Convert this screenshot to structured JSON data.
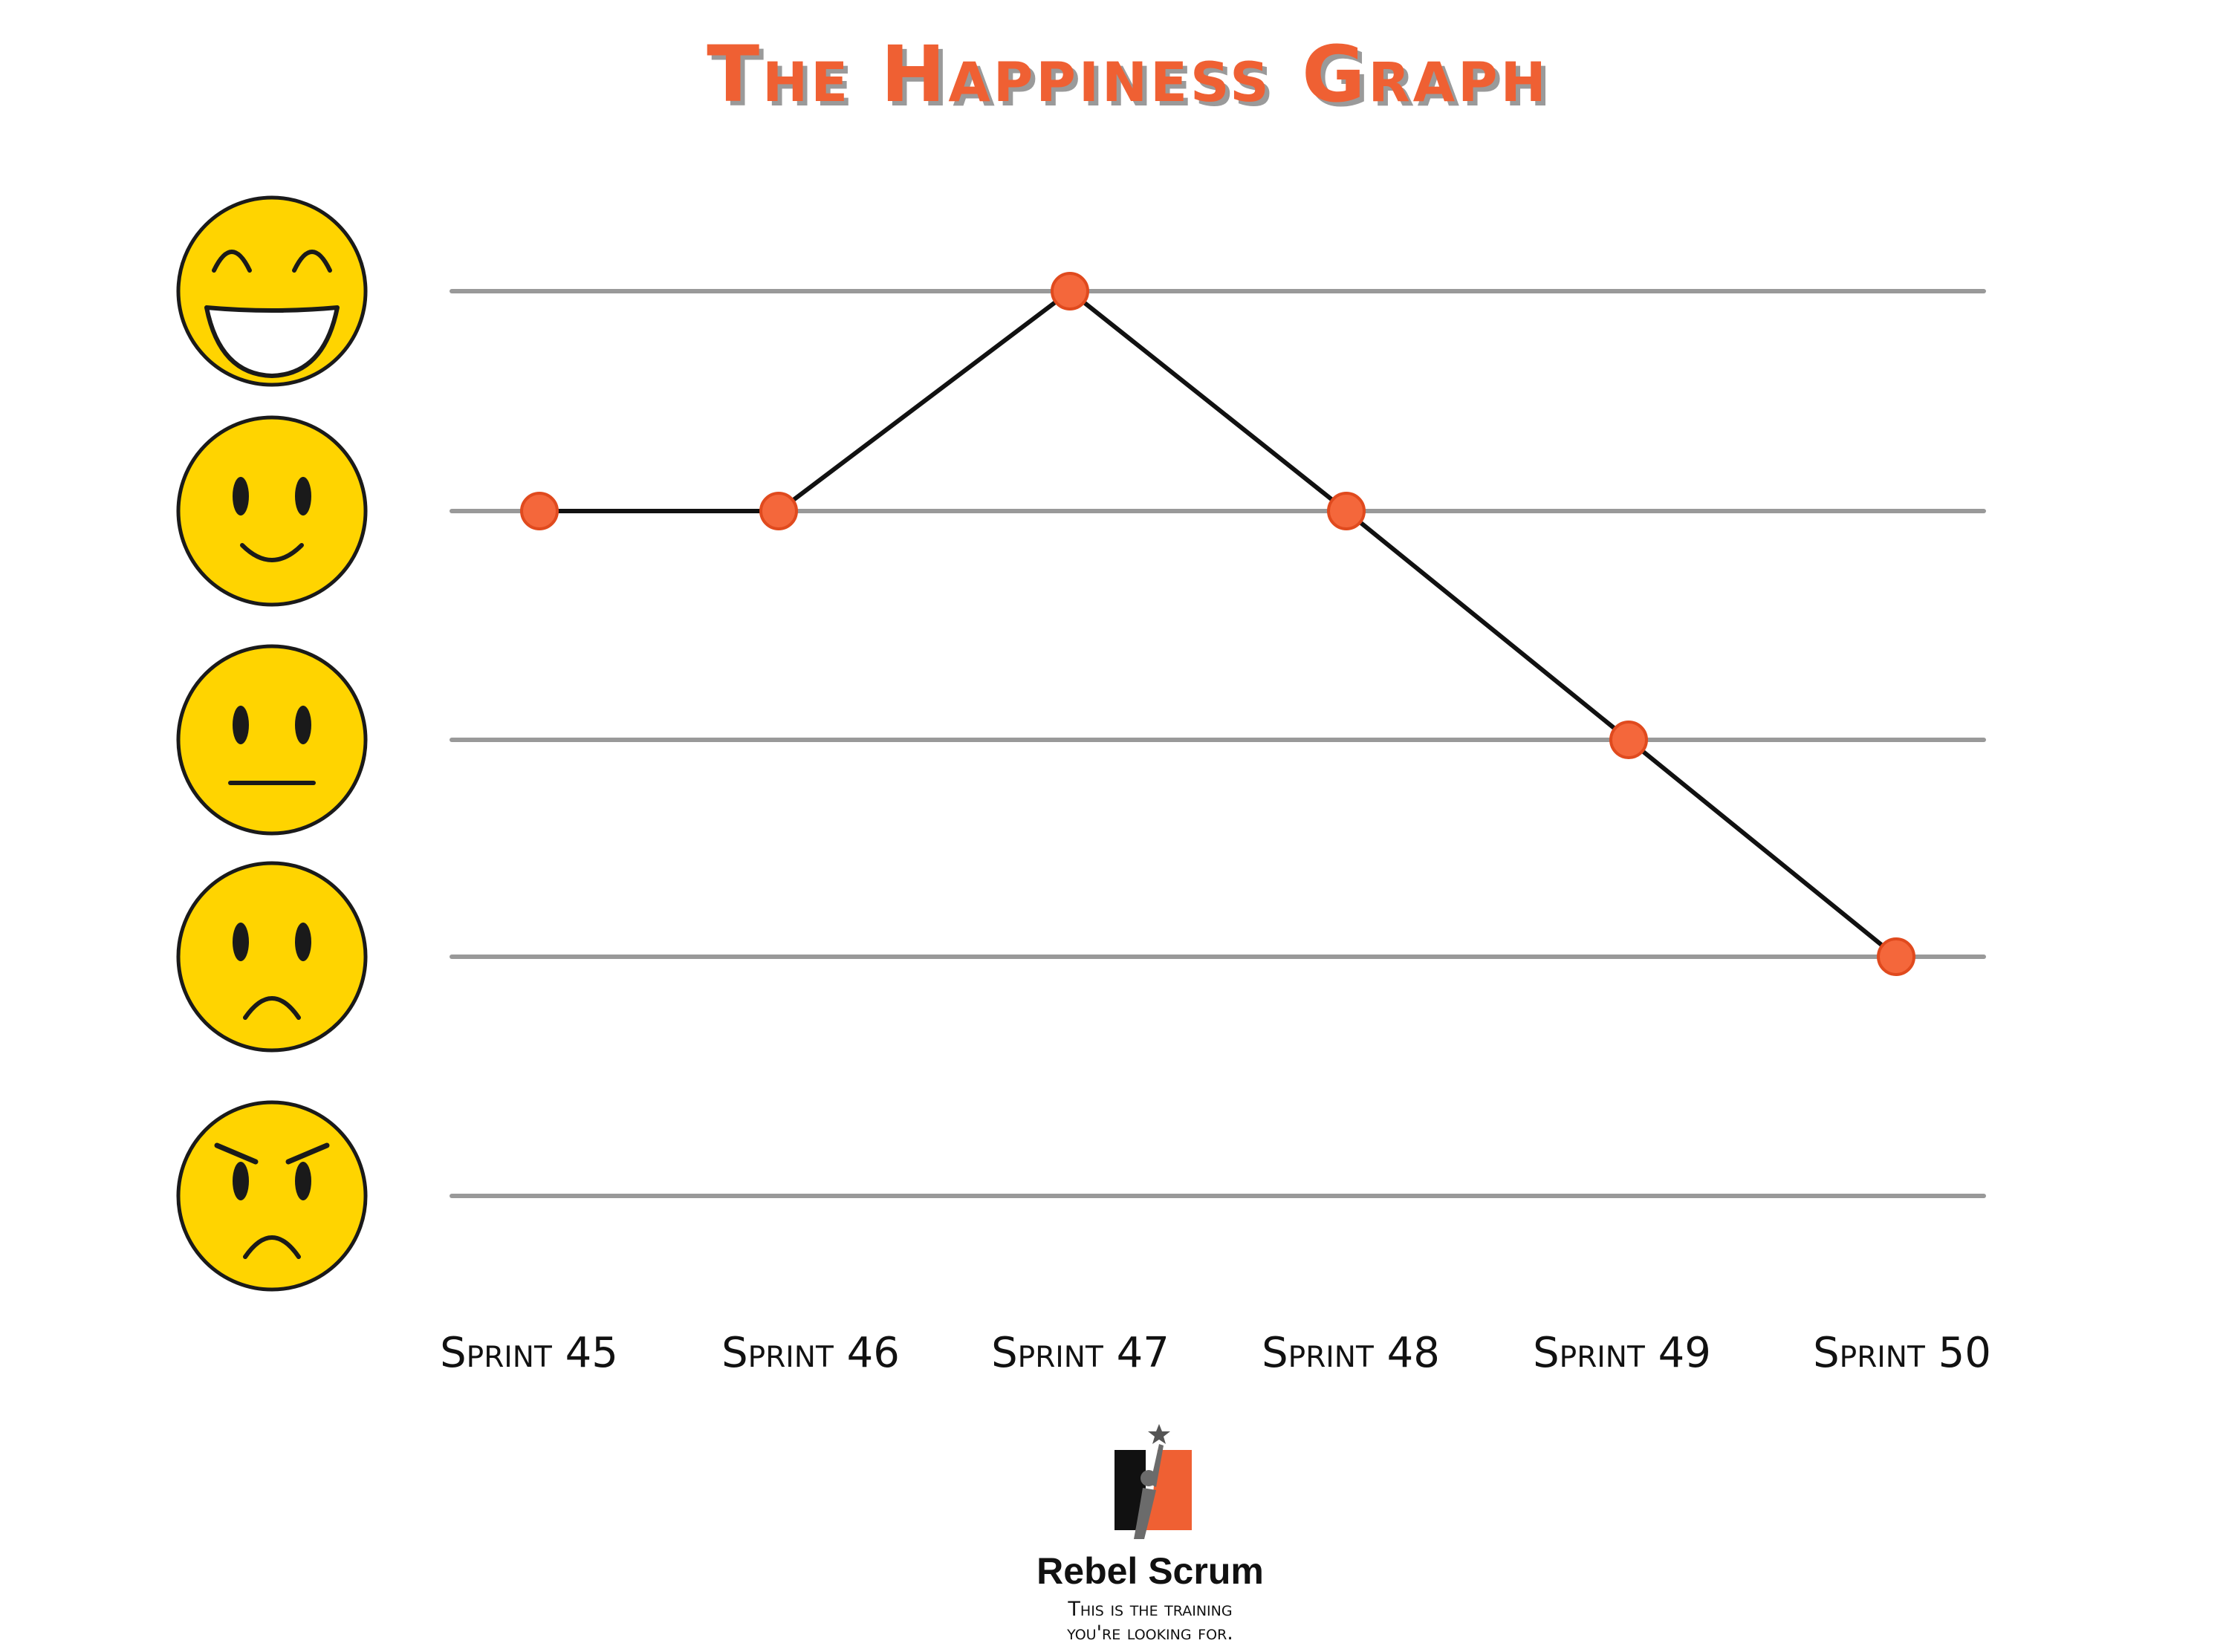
{
  "chart_data": {
    "type": "line",
    "title": "The Happiness Graph",
    "categories": [
      "Sprint 45",
      "Sprint 46",
      "Sprint 47",
      "Sprint 48",
      "Sprint 49",
      "Sprint 50"
    ],
    "y_levels": [
      "angry",
      "sad",
      "neutral",
      "happy",
      "very-happy"
    ],
    "ylim": [
      1,
      5
    ],
    "values": [
      4,
      4,
      5,
      4,
      3,
      2
    ],
    "grid": true,
    "colors": {
      "title": "#EF6033",
      "title_shadow": "#9A9A9A",
      "line": "#111111",
      "marker": "#F4673B",
      "marker_edge": "#E04A1E",
      "grid": "#999999",
      "face": "#FFD400",
      "face_edge": "#1a1a1a"
    }
  },
  "logo": {
    "name": "Rebel Scrum",
    "tagline_line1": "This is the training",
    "tagline_line2": "you're looking for.",
    "accent": "#EF6033",
    "dark": "#111111"
  }
}
